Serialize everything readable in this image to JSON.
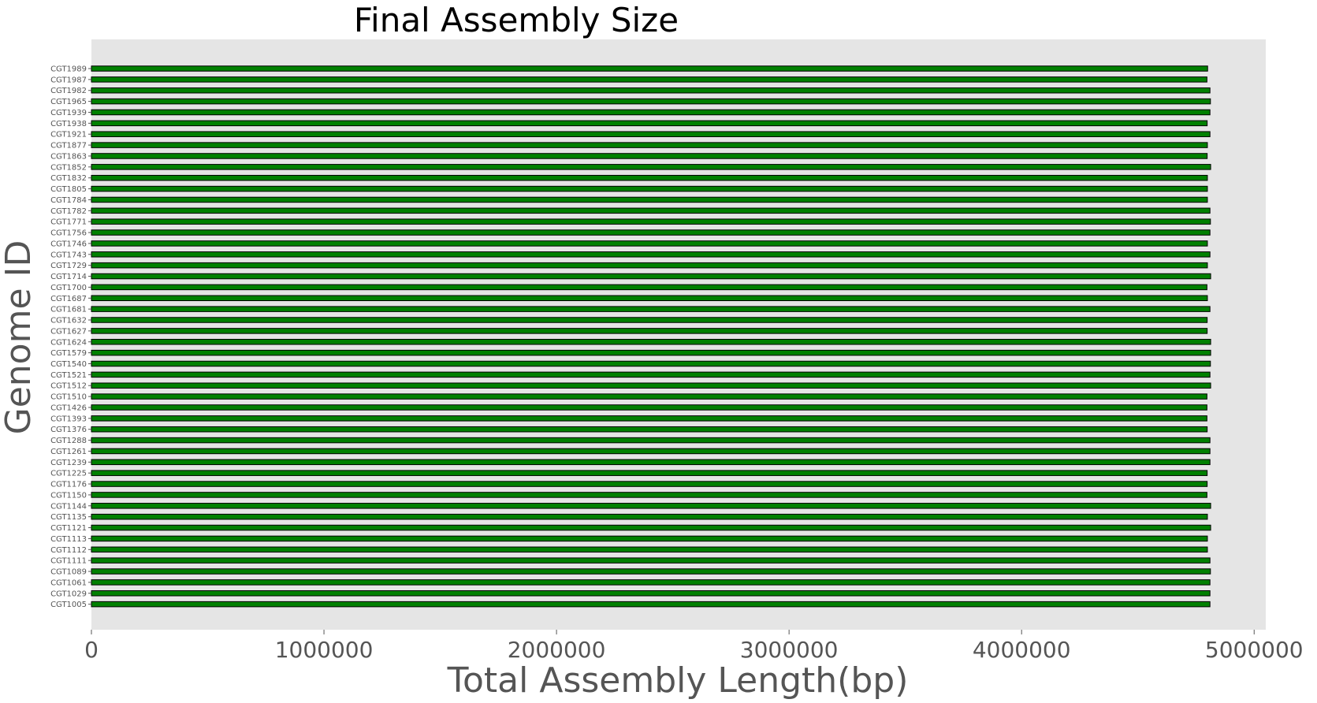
{
  "chart_data": {
    "type": "bar",
    "orientation": "horizontal",
    "title": "Final Assembly Size",
    "xlabel": "Total Assembly Length(bp)",
    "ylabel": "Genome ID",
    "xlim": [
      0,
      5050000
    ],
    "xticks": [
      0,
      1000000,
      2000000,
      3000000,
      4000000,
      5000000
    ],
    "xtick_labels": [
      "0",
      "1000000",
      "2000000",
      "3000000",
      "4000000",
      "5000000"
    ],
    "grid": false,
    "legend": "none",
    "colors": {
      "bar": "#008000",
      "edge": "#000000",
      "plot_bg": "#e5e5e5",
      "tick_text": "#555555",
      "title": "#000000"
    },
    "categories": [
      "CGT1989",
      "CGT1987",
      "CGT1982",
      "CGT1965",
      "CGT1939",
      "CGT1938",
      "CGT1921",
      "CGT1877",
      "CGT1863",
      "CGT1852",
      "CGT1832",
      "CGT1805",
      "CGT1784",
      "CGT1782",
      "CGT1771",
      "CGT1756",
      "CGT1746",
      "CGT1743",
      "CGT1729",
      "CGT1714",
      "CGT1700",
      "CGT1687",
      "CGT1681",
      "CGT1632",
      "CGT1627",
      "CGT1624",
      "CGT1579",
      "CGT1540",
      "CGT1521",
      "CGT1512",
      "CGT1510",
      "CGT1426",
      "CGT1393",
      "CGT1376",
      "CGT1288",
      "CGT1261",
      "CGT1239",
      "CGT1225",
      "CGT1176",
      "CGT1150",
      "CGT1144",
      "CGT1135",
      "CGT1121",
      "CGT1113",
      "CGT1112",
      "CGT1111",
      "CGT1089",
      "CGT1061",
      "CGT1029",
      "CGT1005"
    ],
    "values": [
      4800000,
      4797000,
      4810000,
      4812000,
      4810000,
      4798000,
      4810000,
      4799000,
      4798000,
      4813000,
      4799000,
      4799000,
      4799000,
      4810000,
      4812000,
      4810000,
      4799000,
      4810000,
      4799000,
      4813000,
      4797000,
      4799000,
      4810000,
      4798000,
      4798000,
      4813000,
      4813000,
      4812000,
      4810000,
      4813000,
      4797000,
      4797000,
      4797000,
      4798000,
      4810000,
      4810000,
      4810000,
      4798000,
      4798000,
      4797000,
      4813000,
      4799000,
      4813000,
      4799000,
      4799000,
      4810000,
      4812000,
      4810000,
      4810000,
      4810000
    ]
  }
}
